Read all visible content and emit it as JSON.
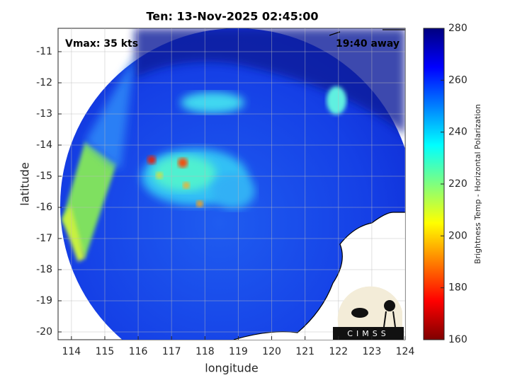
{
  "title": "Ten: 13-Nov-2025 02:45:00",
  "annotations": {
    "vmax": "Vmax: 35 kts",
    "away": "19:40 away"
  },
  "xaxis": {
    "label": "longitude",
    "lim": [
      113.6,
      124
    ],
    "ticks": [
      114,
      115,
      116,
      117,
      118,
      119,
      120,
      121,
      122,
      123,
      124
    ]
  },
  "yaxis": {
    "label": "latitude",
    "lim": [
      -20.25,
      -10.25
    ],
    "ticks": [
      -11,
      -12,
      -13,
      -14,
      -15,
      -16,
      -17,
      -18,
      -19,
      -20
    ]
  },
  "colorbar": {
    "label": "Brightness Temp - Horizontal Polarization",
    "lim": [
      160,
      280
    ],
    "ticks": [
      160,
      180,
      200,
      220,
      240,
      260,
      280
    ]
  },
  "logo": "CIMSS"
}
